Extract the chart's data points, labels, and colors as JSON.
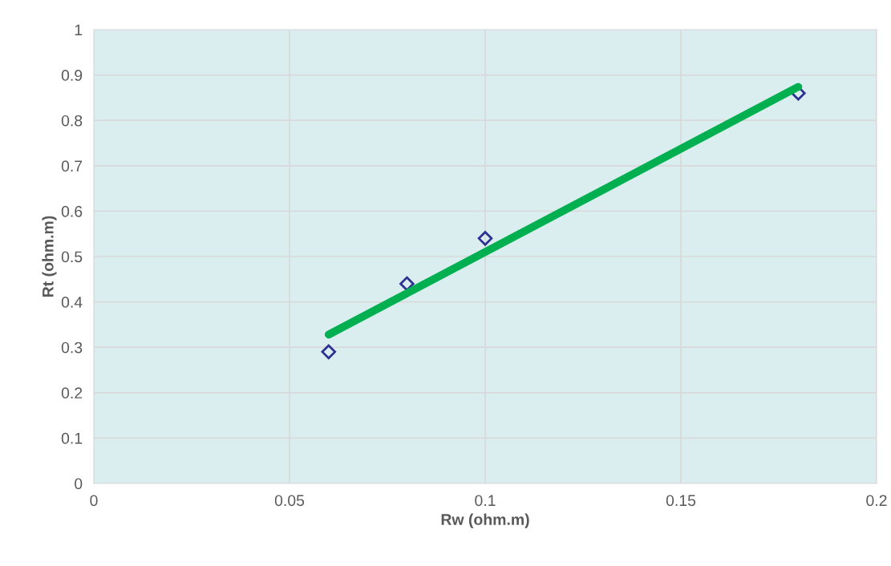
{
  "chart_data": {
    "type": "scatter",
    "xlabel": "Rw (ohm.m)",
    "ylabel": "Rt (ohm.m)",
    "xlim": [
      0,
      0.2
    ],
    "xticks": [
      0,
      0.05,
      0.1,
      0.15,
      0.2
    ],
    "ylim": [
      0,
      1
    ],
    "yticks": [
      0,
      0.1,
      0.2,
      0.3,
      0.4,
      0.5,
      0.6,
      0.7,
      0.8,
      0.9,
      1
    ],
    "grid": true,
    "legend": false,
    "marker": "diamond",
    "series": [
      {
        "color": "#2e3192",
        "x": [
          0.06,
          0.08,
          0.1,
          0.18
        ],
        "values": [
          0.29,
          0.44,
          0.54,
          0.86
        ]
      },
      {
        "type": "line",
        "color": "#00b050",
        "marker": "none",
        "line_style": "solid",
        "x": [
          0.06,
          0.18
        ],
        "values": [
          0.328,
          0.874
        ]
      }
    ]
  }
}
